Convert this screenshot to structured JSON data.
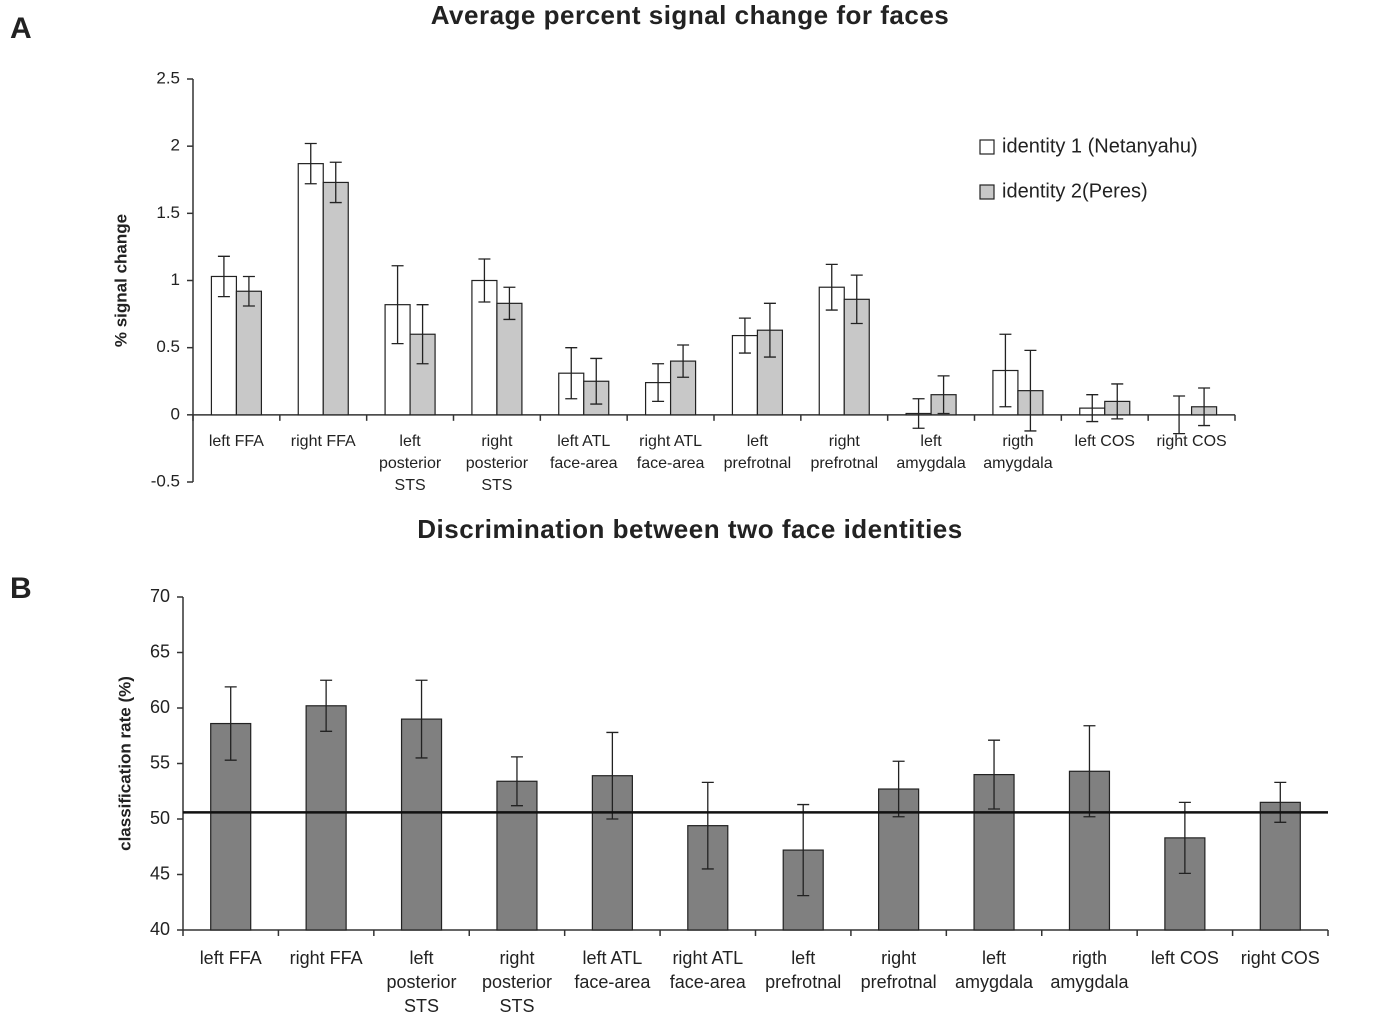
{
  "chart_data": [
    {
      "type": "bar",
      "panel_label": "A",
      "title": "Average percent signal change for faces",
      "ylabel": "% signal change",
      "categories": [
        "left FFA",
        "right FFA",
        "left\nposterior\nSTS",
        "right\nposterior\nSTS",
        "left ATL\nface-area",
        "right ATL\nface-area",
        "left\nprefrotnal",
        "right\nprefrotnal",
        "left\namygdala",
        "rigth\namygdala",
        "left COS",
        "right COS"
      ],
      "series": [
        {
          "name": "identity 1 (Netanyahu)",
          "color": "#ffffff",
          "values": [
            1.03,
            1.87,
            0.82,
            1.0,
            0.31,
            0.24,
            0.59,
            0.95,
            0.01,
            0.33,
            0.05,
            0.0
          ],
          "errors": [
            0.15,
            0.15,
            0.29,
            0.16,
            0.19,
            0.14,
            0.13,
            0.17,
            0.11,
            0.27,
            0.1,
            0.14
          ]
        },
        {
          "name": "identity 2(Peres)",
          "color": "#c8c8c8",
          "values": [
            0.92,
            1.73,
            0.6,
            0.83,
            0.25,
            0.4,
            0.63,
            0.86,
            0.15,
            0.18,
            0.1,
            0.06
          ],
          "errors": [
            0.11,
            0.15,
            0.22,
            0.12,
            0.17,
            0.12,
            0.2,
            0.18,
            0.14,
            0.3,
            0.13,
            0.14
          ]
        }
      ],
      "ylim": [
        -0.5,
        2.5
      ],
      "yticks": [
        -0.5,
        0,
        0.5,
        1,
        1.5,
        2,
        2.5
      ],
      "legend": "upper right"
    },
    {
      "type": "bar",
      "panel_label": "B",
      "title": "Discrimination between two face identities",
      "ylabel": "classification rate (%)",
      "categories": [
        "left FFA",
        "right FFA",
        "left\nposterior\nSTS",
        "right\nposterior\nSTS",
        "left ATL\nface-area",
        "right ATL\nface-area",
        "left\nprefrotnal",
        "right\nprefrotnal",
        "left\namygdala",
        "rigth\namygdala",
        "left COS",
        "right COS"
      ],
      "series": [
        {
          "color": "#808080",
          "values": [
            58.6,
            60.2,
            59.0,
            53.4,
            53.9,
            49.4,
            47.2,
            52.7,
            54.0,
            54.3,
            48.3,
            51.5
          ],
          "errors": [
            3.3,
            2.3,
            3.5,
            2.2,
            3.9,
            3.9,
            4.1,
            2.5,
            3.1,
            4.1,
            3.2,
            1.8
          ]
        }
      ],
      "hline": 50.6,
      "ylim": [
        40,
        70
      ],
      "yticks": [
        40,
        45,
        50,
        55,
        60,
        65,
        70
      ]
    }
  ]
}
